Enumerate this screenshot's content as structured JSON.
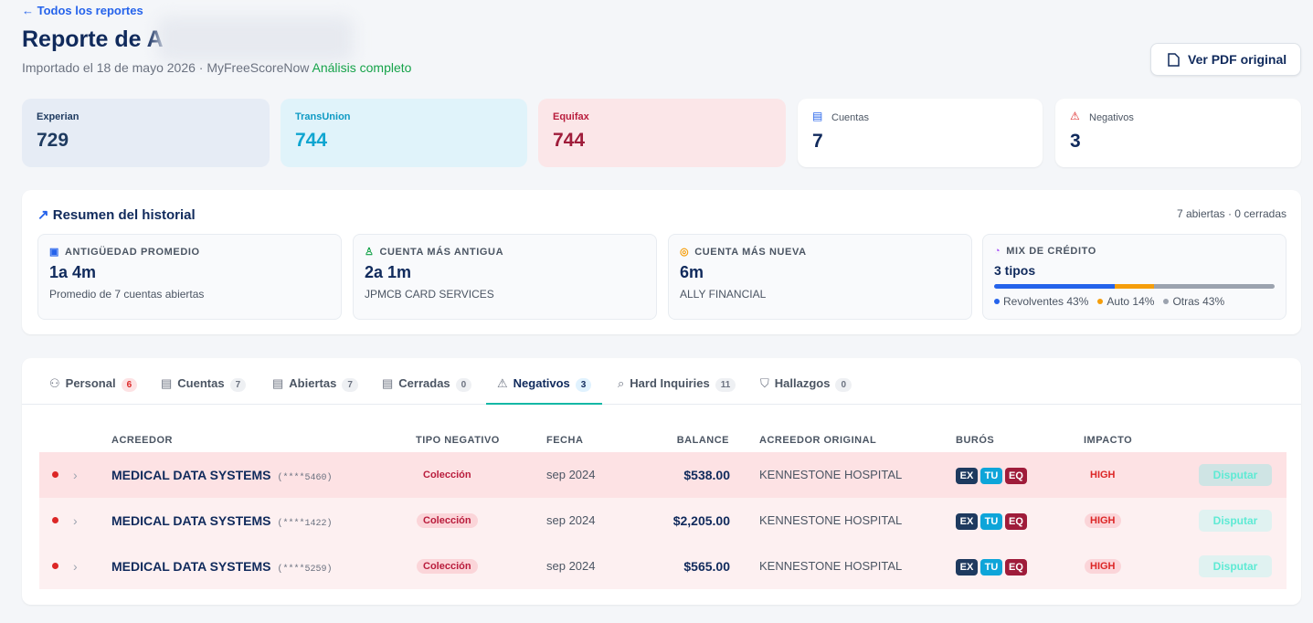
{
  "header": {
    "back": "Todos los reportes",
    "title": "Reporte de A",
    "subtitle": "Importado el 18 de mayo 2026 · MyFreeScoreNow",
    "status": "Análisis completo",
    "pdf_button": "Ver PDF original"
  },
  "scores": [
    {
      "label": "Experian",
      "value": 729
    },
    {
      "label": "TransUnion",
      "value": 744
    },
    {
      "label": "Equifax",
      "value": 744
    }
  ],
  "stats": [
    {
      "label": "Cuentas",
      "value": 7
    },
    {
      "label": "Negativos",
      "value": 3
    }
  ],
  "summary": {
    "title": "Resumen del historial",
    "meta": "7 abiertas · 0 cerradas",
    "cards": [
      {
        "label": "ANTIGÜEDAD PROMEDIO",
        "value": "1a 4m",
        "detail": "Promedio de 7 cuentas abiertas"
      },
      {
        "label": "CUENTA MÁS ANTIGUA",
        "value": "2a 1m",
        "detail": "JPMCB CARD SERVICES"
      },
      {
        "label": "CUENTA MÁS NUEVA",
        "value": "6m",
        "detail": "ALLY FINANCIAL"
      }
    ],
    "mix": {
      "label": "MIX DE CRÉDITO",
      "value": "3 tipos",
      "segments": [
        {
          "label": "Revolventes 43%",
          "value": 43,
          "color": "#2563eb"
        },
        {
          "label": "Auto 14%",
          "value": 14,
          "color": "#f59e0b"
        },
        {
          "label": "Otras 43%",
          "value": 43,
          "color": "#9ca3af"
        }
      ]
    }
  },
  "tabs": [
    {
      "label": "Personal",
      "count": 6
    },
    {
      "label": "Cuentas",
      "count": 7
    },
    {
      "label": "Abiertas",
      "count": 7
    },
    {
      "label": "Cerradas",
      "count": 0
    },
    {
      "label": "Negativos",
      "count": 3
    },
    {
      "label": "Hard Inquiries",
      "count": 11
    },
    {
      "label": "Hallazgos",
      "count": 0
    }
  ],
  "table": {
    "columns": [
      "ACREEDOR",
      "TIPO NEGATIVO",
      "FECHA",
      "BALANCE",
      "ACREEDOR ORIGINAL",
      "BURÓS",
      "IMPACTO"
    ],
    "rows": [
      {
        "creditor": "MEDICAL DATA SYSTEMS",
        "account": "(****5460)",
        "type": "Colección",
        "date": "sep 2024",
        "balance": "$538.00",
        "original": "KENNESTONE HOSPITAL",
        "bureaus": [
          "EX",
          "TU",
          "EQ"
        ],
        "impact": "HIGH",
        "action": "Disputar"
      },
      {
        "creditor": "MEDICAL DATA SYSTEMS",
        "account": "(****1422)",
        "type": "Colección",
        "date": "sep 2024",
        "balance": "$2,205.00",
        "original": "KENNESTONE HOSPITAL",
        "bureaus": [
          "EX",
          "TU",
          "EQ"
        ],
        "impact": "HIGH",
        "action": "Disputar"
      },
      {
        "creditor": "MEDICAL DATA SYSTEMS",
        "account": "(****5259)",
        "type": "Colección",
        "date": "sep 2024",
        "balance": "$565.00",
        "original": "KENNESTONE HOSPITAL",
        "bureaus": [
          "EX",
          "TU",
          "EQ"
        ],
        "impact": "HIGH",
        "action": "Disputar"
      }
    ]
  }
}
